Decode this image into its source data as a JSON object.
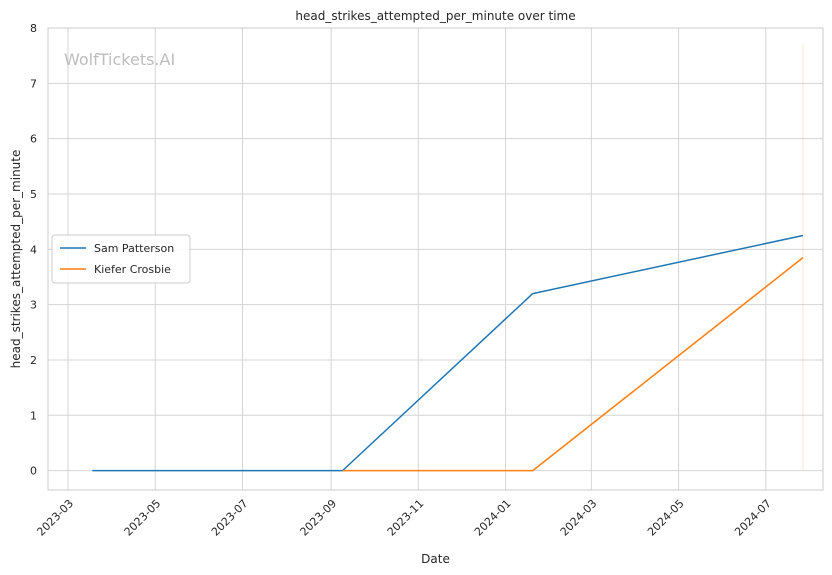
{
  "chart_data": {
    "type": "line",
    "title": "head_strikes_attempted_per_minute over time",
    "xlabel": "Date",
    "ylabel": "head_strikes_attempted_per_minute",
    "xlim": [
      "2023-02-15",
      "2024-08-10"
    ],
    "ylim": [
      -0.35,
      8.0
    ],
    "x_ticks": [
      "2023-03",
      "2023-05",
      "2023-07",
      "2023-09",
      "2023-11",
      "2024-01",
      "2024-03",
      "2024-05",
      "2024-07"
    ],
    "y_ticks": [
      0,
      1,
      2,
      3,
      4,
      5,
      6,
      7,
      8
    ],
    "grid": true,
    "legend_position": "center-left",
    "watermark": "WolfTickets.AI",
    "series": [
      {
        "name": "Sam Patterson",
        "color": "#1f77b4",
        "x": [
          "2023-03-18",
          "2023-09-09",
          "2024-01-20",
          "2024-07-27"
        ],
        "y": [
          0,
          0,
          3.2,
          4.25
        ]
      },
      {
        "name": "Kiefer Crosbie",
        "color": "#ff7f0e",
        "x": [
          "2023-09-09",
          "2024-01-20",
          "2024-07-27"
        ],
        "y": [
          0,
          0,
          3.85
        ]
      }
    ],
    "marker_line": {
      "x": "2024-07-27",
      "y_range": [
        0,
        7.7
      ],
      "color": "#ff7f0e"
    }
  }
}
